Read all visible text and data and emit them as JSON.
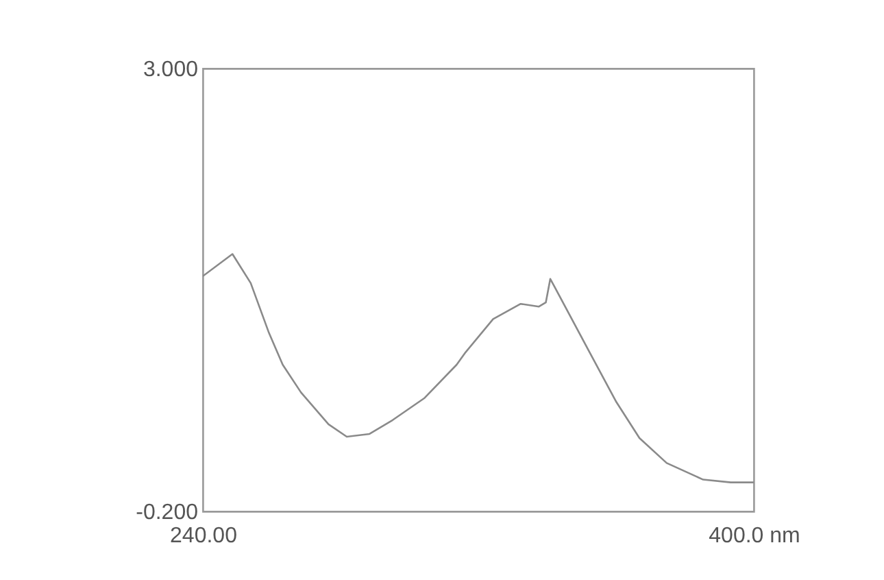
{
  "chart_data": {
    "type": "line",
    "x": [
      240,
      248.6,
      253.9,
      259.2,
      263.2,
      268.5,
      276.5,
      281.8,
      288.4,
      295.1,
      304.4,
      313.7,
      316.3,
      324.3,
      332.3,
      337.6,
      339.6,
      340.9,
      342.2,
      350.8,
      360.1,
      366.8,
      374.7,
      385.3,
      393.3,
      400
    ],
    "series": [
      {
        "color": "#8a8a8a",
        "values": [
          1.5,
          1.66,
          1.45,
          1.09,
          0.86,
          0.66,
          0.43,
          0.34,
          0.36,
          0.46,
          0.62,
          0.86,
          0.95,
          1.19,
          1.3,
          1.28,
          1.31,
          1.48,
          1.42,
          1.02,
          0.59,
          0.33,
          0.15,
          0.03,
          0.01,
          0.01
        ]
      }
    ],
    "xlim": [
      240,
      400
    ],
    "xticks": [
      {
        "value": 240,
        "label": "240.00"
      },
      {
        "value": 400,
        "label": "400.0 nm"
      }
    ],
    "ylim": [
      -0.2,
      3.0
    ],
    "yticks": [
      {
        "value": -0.2,
        "label": "-0.200"
      },
      {
        "value": 3.0,
        "label": "3.000"
      }
    ],
    "grid": false
  }
}
